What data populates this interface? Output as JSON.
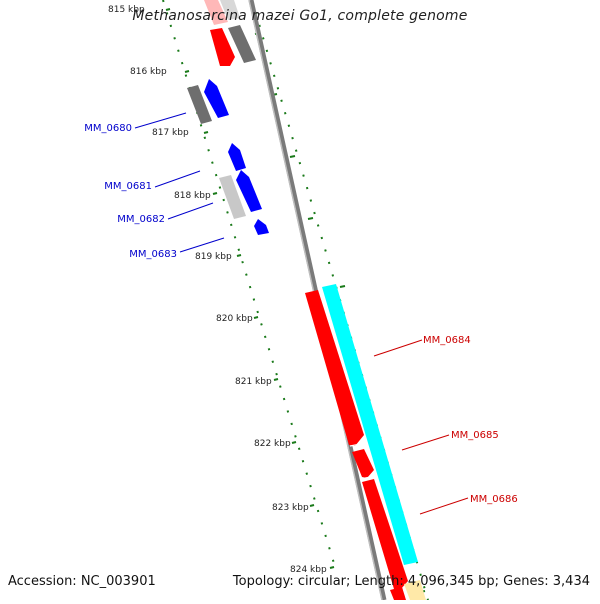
{
  "title": "Methanosarcina mazei Go1, complete genome",
  "footer": {
    "accession": "Accession: NC_003901",
    "summary": "Topology: circular; Length: 4,096,345 bp; Genes: 3,434"
  },
  "colors": {
    "forward_cds": "#ff0000",
    "reverse_cds": "#0000ff",
    "gray_dark": "#6e6e6e",
    "gray_light": "#c8c8c8",
    "cyan": "#00ffff",
    "tick": "#1a7a1a",
    "backbone": "#8a8a8a"
  },
  "kbp_labels": [
    "815 kbp",
    "816 kbp",
    "817 kbp",
    "818 kbp",
    "819 kbp",
    "820 kbp",
    "821 kbp",
    "822 kbp",
    "823 kbp",
    "824 kbp"
  ],
  "genes_reverse": [
    {
      "label": "MM_0680"
    },
    {
      "label": "MM_0681"
    },
    {
      "label": "MM_0682"
    },
    {
      "label": "MM_0683"
    }
  ],
  "genes_forward": [
    {
      "label": "MM_0684"
    },
    {
      "label": "MM_0685"
    },
    {
      "label": "MM_0686"
    }
  ]
}
